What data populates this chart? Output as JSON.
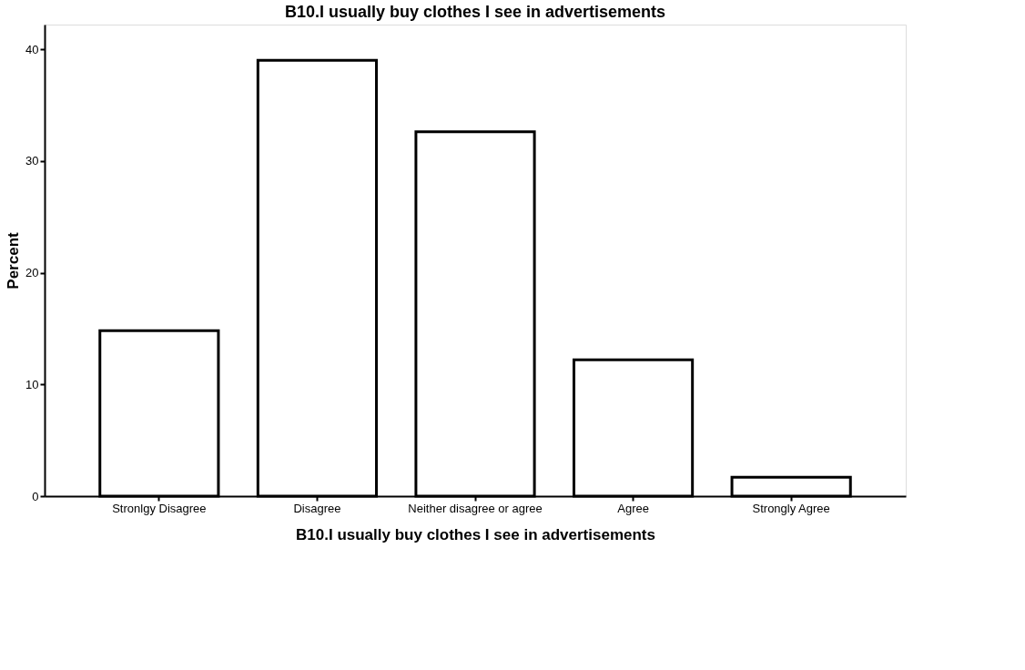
{
  "chart_data": {
    "type": "bar",
    "title": "B10.I usually buy clothes I see in advertisements",
    "xlabel": "B10.I usually buy clothes I see in advertisements",
    "ylabel": "Percent",
    "categories": [
      "Stronlgy Disagree",
      "Disagree",
      "Neither disagree or agree",
      "Agree",
      "Strongly Agree"
    ],
    "values": [
      14.8,
      39.0,
      32.6,
      12.2,
      1.7
    ],
    "color": "#ffffff",
    "ylim": [
      0,
      42.2
    ],
    "yticks": [
      0,
      10,
      20,
      30,
      40
    ],
    "grid": false
  }
}
